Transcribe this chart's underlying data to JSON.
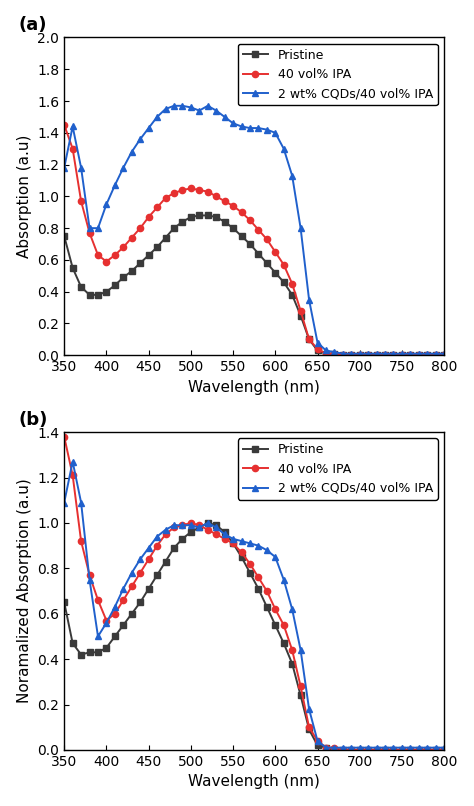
{
  "wavelengths": [
    350,
    360,
    370,
    380,
    390,
    400,
    410,
    420,
    430,
    440,
    450,
    460,
    470,
    480,
    490,
    500,
    510,
    520,
    530,
    540,
    550,
    560,
    570,
    580,
    590,
    600,
    610,
    620,
    630,
    640,
    650,
    660,
    670,
    680,
    690,
    700,
    710,
    720,
    730,
    740,
    750,
    760,
    770,
    780,
    790,
    800
  ],
  "pristine_abs": [
    0.75,
    0.55,
    0.43,
    0.38,
    0.38,
    0.4,
    0.44,
    0.49,
    0.53,
    0.58,
    0.63,
    0.68,
    0.74,
    0.8,
    0.84,
    0.87,
    0.88,
    0.88,
    0.87,
    0.84,
    0.8,
    0.75,
    0.7,
    0.64,
    0.58,
    0.52,
    0.46,
    0.38,
    0.25,
    0.1,
    0.03,
    0.01,
    0.01,
    0.0,
    0.0,
    0.0,
    0.0,
    0.0,
    0.0,
    0.0,
    0.0,
    0.0,
    0.0,
    0.0,
    0.0,
    0.0
  ],
  "ipa40_abs": [
    1.45,
    1.3,
    0.97,
    0.77,
    0.63,
    0.59,
    0.63,
    0.68,
    0.74,
    0.8,
    0.87,
    0.93,
    0.99,
    1.02,
    1.04,
    1.05,
    1.04,
    1.03,
    1.0,
    0.97,
    0.94,
    0.9,
    0.85,
    0.79,
    0.73,
    0.65,
    0.57,
    0.45,
    0.28,
    0.1,
    0.04,
    0.01,
    0.01,
    0.0,
    0.0,
    0.0,
    0.0,
    0.0,
    0.0,
    0.0,
    0.0,
    0.0,
    0.0,
    0.0,
    0.0,
    0.0
  ],
  "cqd_abs": [
    1.18,
    1.44,
    1.18,
    0.8,
    0.8,
    0.95,
    1.07,
    1.18,
    1.28,
    1.36,
    1.43,
    1.5,
    1.55,
    1.57,
    1.57,
    1.56,
    1.54,
    1.57,
    1.54,
    1.5,
    1.46,
    1.44,
    1.43,
    1.43,
    1.42,
    1.4,
    1.3,
    1.13,
    0.8,
    0.35,
    0.08,
    0.03,
    0.02,
    0.01,
    0.01,
    0.01,
    0.01,
    0.01,
    0.01,
    0.01,
    0.01,
    0.01,
    0.01,
    0.01,
    0.01,
    0.01
  ],
  "pristine_norm": [
    0.65,
    0.47,
    0.42,
    0.43,
    0.43,
    0.45,
    0.5,
    0.55,
    0.6,
    0.65,
    0.71,
    0.77,
    0.83,
    0.89,
    0.93,
    0.96,
    0.98,
    1.0,
    0.99,
    0.96,
    0.91,
    0.85,
    0.78,
    0.71,
    0.63,
    0.55,
    0.47,
    0.38,
    0.24,
    0.09,
    0.02,
    0.01,
    0.0,
    0.0,
    0.0,
    0.0,
    0.0,
    0.0,
    0.0,
    0.0,
    0.0,
    0.0,
    0.0,
    0.0,
    0.0,
    0.0
  ],
  "ipa40_norm": [
    1.38,
    1.21,
    0.92,
    0.77,
    0.66,
    0.57,
    0.6,
    0.66,
    0.72,
    0.78,
    0.84,
    0.9,
    0.95,
    0.98,
    0.99,
    1.0,
    0.99,
    0.97,
    0.95,
    0.93,
    0.91,
    0.87,
    0.82,
    0.76,
    0.7,
    0.62,
    0.55,
    0.44,
    0.28,
    0.1,
    0.04,
    0.01,
    0.01,
    0.0,
    0.0,
    0.0,
    0.0,
    0.0,
    0.0,
    0.0,
    0.0,
    0.0,
    0.0,
    0.0,
    0.0,
    0.0
  ],
  "cqd_norm": [
    1.09,
    1.27,
    1.09,
    0.75,
    0.5,
    0.56,
    0.63,
    0.71,
    0.78,
    0.84,
    0.89,
    0.94,
    0.97,
    0.99,
    0.99,
    0.99,
    0.98,
    1.0,
    0.98,
    0.95,
    0.93,
    0.92,
    0.91,
    0.9,
    0.88,
    0.85,
    0.75,
    0.62,
    0.44,
    0.18,
    0.04,
    0.01,
    0.01,
    0.01,
    0.01,
    0.01,
    0.01,
    0.01,
    0.01,
    0.01,
    0.01,
    0.01,
    0.01,
    0.01,
    0.01,
    0.01
  ],
  "color_pristine": "#3a3a3a",
  "color_ipa40": "#e63030",
  "color_cqd": "#2060cc",
  "marker_pristine": "s",
  "marker_ipa40": "o",
  "marker_cqd": "^",
  "label_pristine": "Pristine",
  "label_ipa40": "40 vol% IPA",
  "label_cqd": "2 wt% CQDs/40 vol% IPA",
  "panel_a_label": "(a)",
  "panel_b_label": "(b)",
  "xlabel": "Wavelength (nm)",
  "ylabel_a": "Absorption (a.u)",
  "ylabel_b": "Noramalized Absorption (a.u)",
  "xlim": [
    350,
    800
  ],
  "ylim_a": [
    0.0,
    2.0
  ],
  "ylim_b": [
    0.0,
    1.4
  ],
  "xticks": [
    350,
    400,
    450,
    500,
    550,
    600,
    650,
    700,
    750,
    800
  ],
  "yticks_a": [
    0.0,
    0.2,
    0.4,
    0.6,
    0.8,
    1.0,
    1.2,
    1.4,
    1.6,
    1.8,
    2.0
  ],
  "yticks_b": [
    0.0,
    0.2,
    0.4,
    0.6,
    0.8,
    1.0,
    1.2,
    1.4
  ],
  "markersize": 4.5,
  "linewidth": 1.4,
  "legend_fontsize": 9,
  "tick_labelsize": 10,
  "axis_labelsize": 11
}
